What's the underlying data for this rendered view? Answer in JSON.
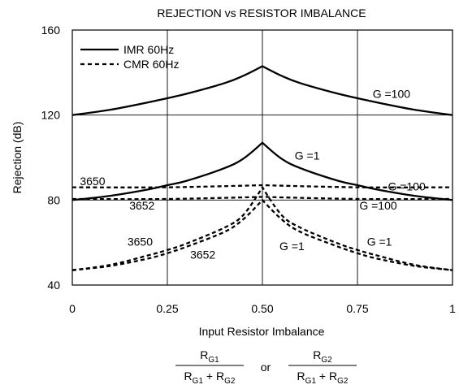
{
  "chart_data": {
    "type": "line",
    "title": "REJECTION vs RESISTOR IMBALANCE",
    "xlabel": "Input Resistor Imbalance",
    "ylabel": "Rejection (dB)",
    "xlim": [
      0,
      1
    ],
    "ylim": [
      40,
      160
    ],
    "x_ticks": [
      "0",
      "0.25",
      "0.50",
      "0.75",
      "1"
    ],
    "x_tick_values": [
      0,
      0.25,
      0.5,
      0.75,
      1
    ],
    "y_ticks": [
      "40",
      "80",
      "120",
      "160"
    ],
    "y_tick_values": [
      40,
      80,
      120,
      160
    ],
    "grid": true,
    "legend": {
      "position": "top-left",
      "entries": [
        {
          "label": "IMR 60Hz",
          "style": "solid"
        },
        {
          "label": "CMR 60Hz",
          "style": "dashed"
        }
      ]
    },
    "series": [
      {
        "name": "IMR 60Hz",
        "style": "solid",
        "points": [
          [
            0,
            120
          ],
          [
            0.1,
            122.5
          ],
          [
            0.2,
            126
          ],
          [
            0.3,
            130
          ],
          [
            0.4,
            135
          ],
          [
            0.45,
            138.5
          ],
          [
            0.5,
            143
          ],
          [
            0.55,
            138.5
          ],
          [
            0.6,
            135
          ],
          [
            0.7,
            130
          ],
          [
            0.8,
            126
          ],
          [
            0.9,
            122.5
          ],
          [
            1,
            120
          ]
        ]
      },
      {
        "name": "IMR 60Hz",
        "style": "solid",
        "points": [
          [
            0,
            80
          ],
          [
            0.1,
            82
          ],
          [
            0.2,
            85
          ],
          [
            0.25,
            87
          ],
          [
            0.3,
            89
          ],
          [
            0.4,
            95
          ],
          [
            0.45,
            99.5
          ],
          [
            0.5,
            107
          ],
          [
            0.55,
            99.5
          ],
          [
            0.6,
            95
          ],
          [
            0.7,
            89
          ],
          [
            0.75,
            87
          ],
          [
            0.8,
            85
          ],
          [
            0.9,
            82
          ],
          [
            1,
            80
          ]
        ]
      },
      {
        "name": "CMR 60Hz",
        "style": "dashed",
        "points": [
          [
            0,
            86
          ],
          [
            0.25,
            86
          ],
          [
            0.5,
            87
          ],
          [
            0.75,
            86
          ],
          [
            1,
            86
          ]
        ]
      },
      {
        "name": "CMR 60Hz",
        "style": "dashed",
        "points": [
          [
            0,
            80.5
          ],
          [
            0.25,
            80.5
          ],
          [
            0.5,
            81.5
          ],
          [
            0.75,
            80.5
          ],
          [
            1,
            80.5
          ]
        ]
      },
      {
        "name": "CMR 60Hz",
        "style": "dashed",
        "points": [
          [
            0,
            47
          ],
          [
            0.1,
            49.5
          ],
          [
            0.2,
            54
          ],
          [
            0.25,
            56.5
          ],
          [
            0.3,
            59.5
          ],
          [
            0.4,
            67
          ],
          [
            0.45,
            73
          ],
          [
            0.5,
            86
          ],
          [
            0.55,
            73
          ],
          [
            0.6,
            67
          ],
          [
            0.7,
            59.5
          ],
          [
            0.75,
            56.5
          ],
          [
            0.8,
            54
          ],
          [
            0.9,
            49.5
          ],
          [
            1,
            47
          ]
        ]
      },
      {
        "name": "CMR 60Hz",
        "style": "dashed",
        "points": [
          [
            0,
            47
          ],
          [
            0.1,
            49
          ],
          [
            0.2,
            52.5
          ],
          [
            0.25,
            55
          ],
          [
            0.3,
            58
          ],
          [
            0.4,
            65
          ],
          [
            0.45,
            71
          ],
          [
            0.5,
            80
          ],
          [
            0.55,
            71
          ],
          [
            0.6,
            65
          ],
          [
            0.7,
            58
          ],
          [
            0.75,
            55
          ],
          [
            0.8,
            52.5
          ],
          [
            0.9,
            49
          ],
          [
            1,
            47
          ]
        ]
      }
    ],
    "annotations": [
      {
        "text": "G =100",
        "x": 0.79,
        "y": 128
      },
      {
        "text": "G =1",
        "x": 0.585,
        "y": 99
      },
      {
        "text": "3650",
        "x": 0.02,
        "y": 87
      },
      {
        "text": "G =100",
        "x": 0.83,
        "y": 84.5
      },
      {
        "text": "3652",
        "x": 0.15,
        "y": 75.5
      },
      {
        "text": "G =100",
        "x": 0.755,
        "y": 75.5
      },
      {
        "text": "3650",
        "x": 0.145,
        "y": 58.5
      },
      {
        "text": "G =1",
        "x": 0.775,
        "y": 58.5
      },
      {
        "text": "3652",
        "x": 0.31,
        "y": 52.5
      },
      {
        "text": "G =1",
        "x": 0.545,
        "y": 56.5
      }
    ],
    "formula": {
      "left": {
        "num": "R",
        "num_sub": "G1",
        "den_a": "R",
        "den_a_sub": "G1",
        "den_op": " + ",
        "den_b": "R",
        "den_b_sub": "G2"
      },
      "or": "or",
      "right": {
        "num": "R",
        "num_sub": "G2",
        "den_a": "R",
        "den_a_sub": "G1",
        "den_op": " + ",
        "den_b": "R",
        "den_b_sub": "G2"
      }
    }
  }
}
